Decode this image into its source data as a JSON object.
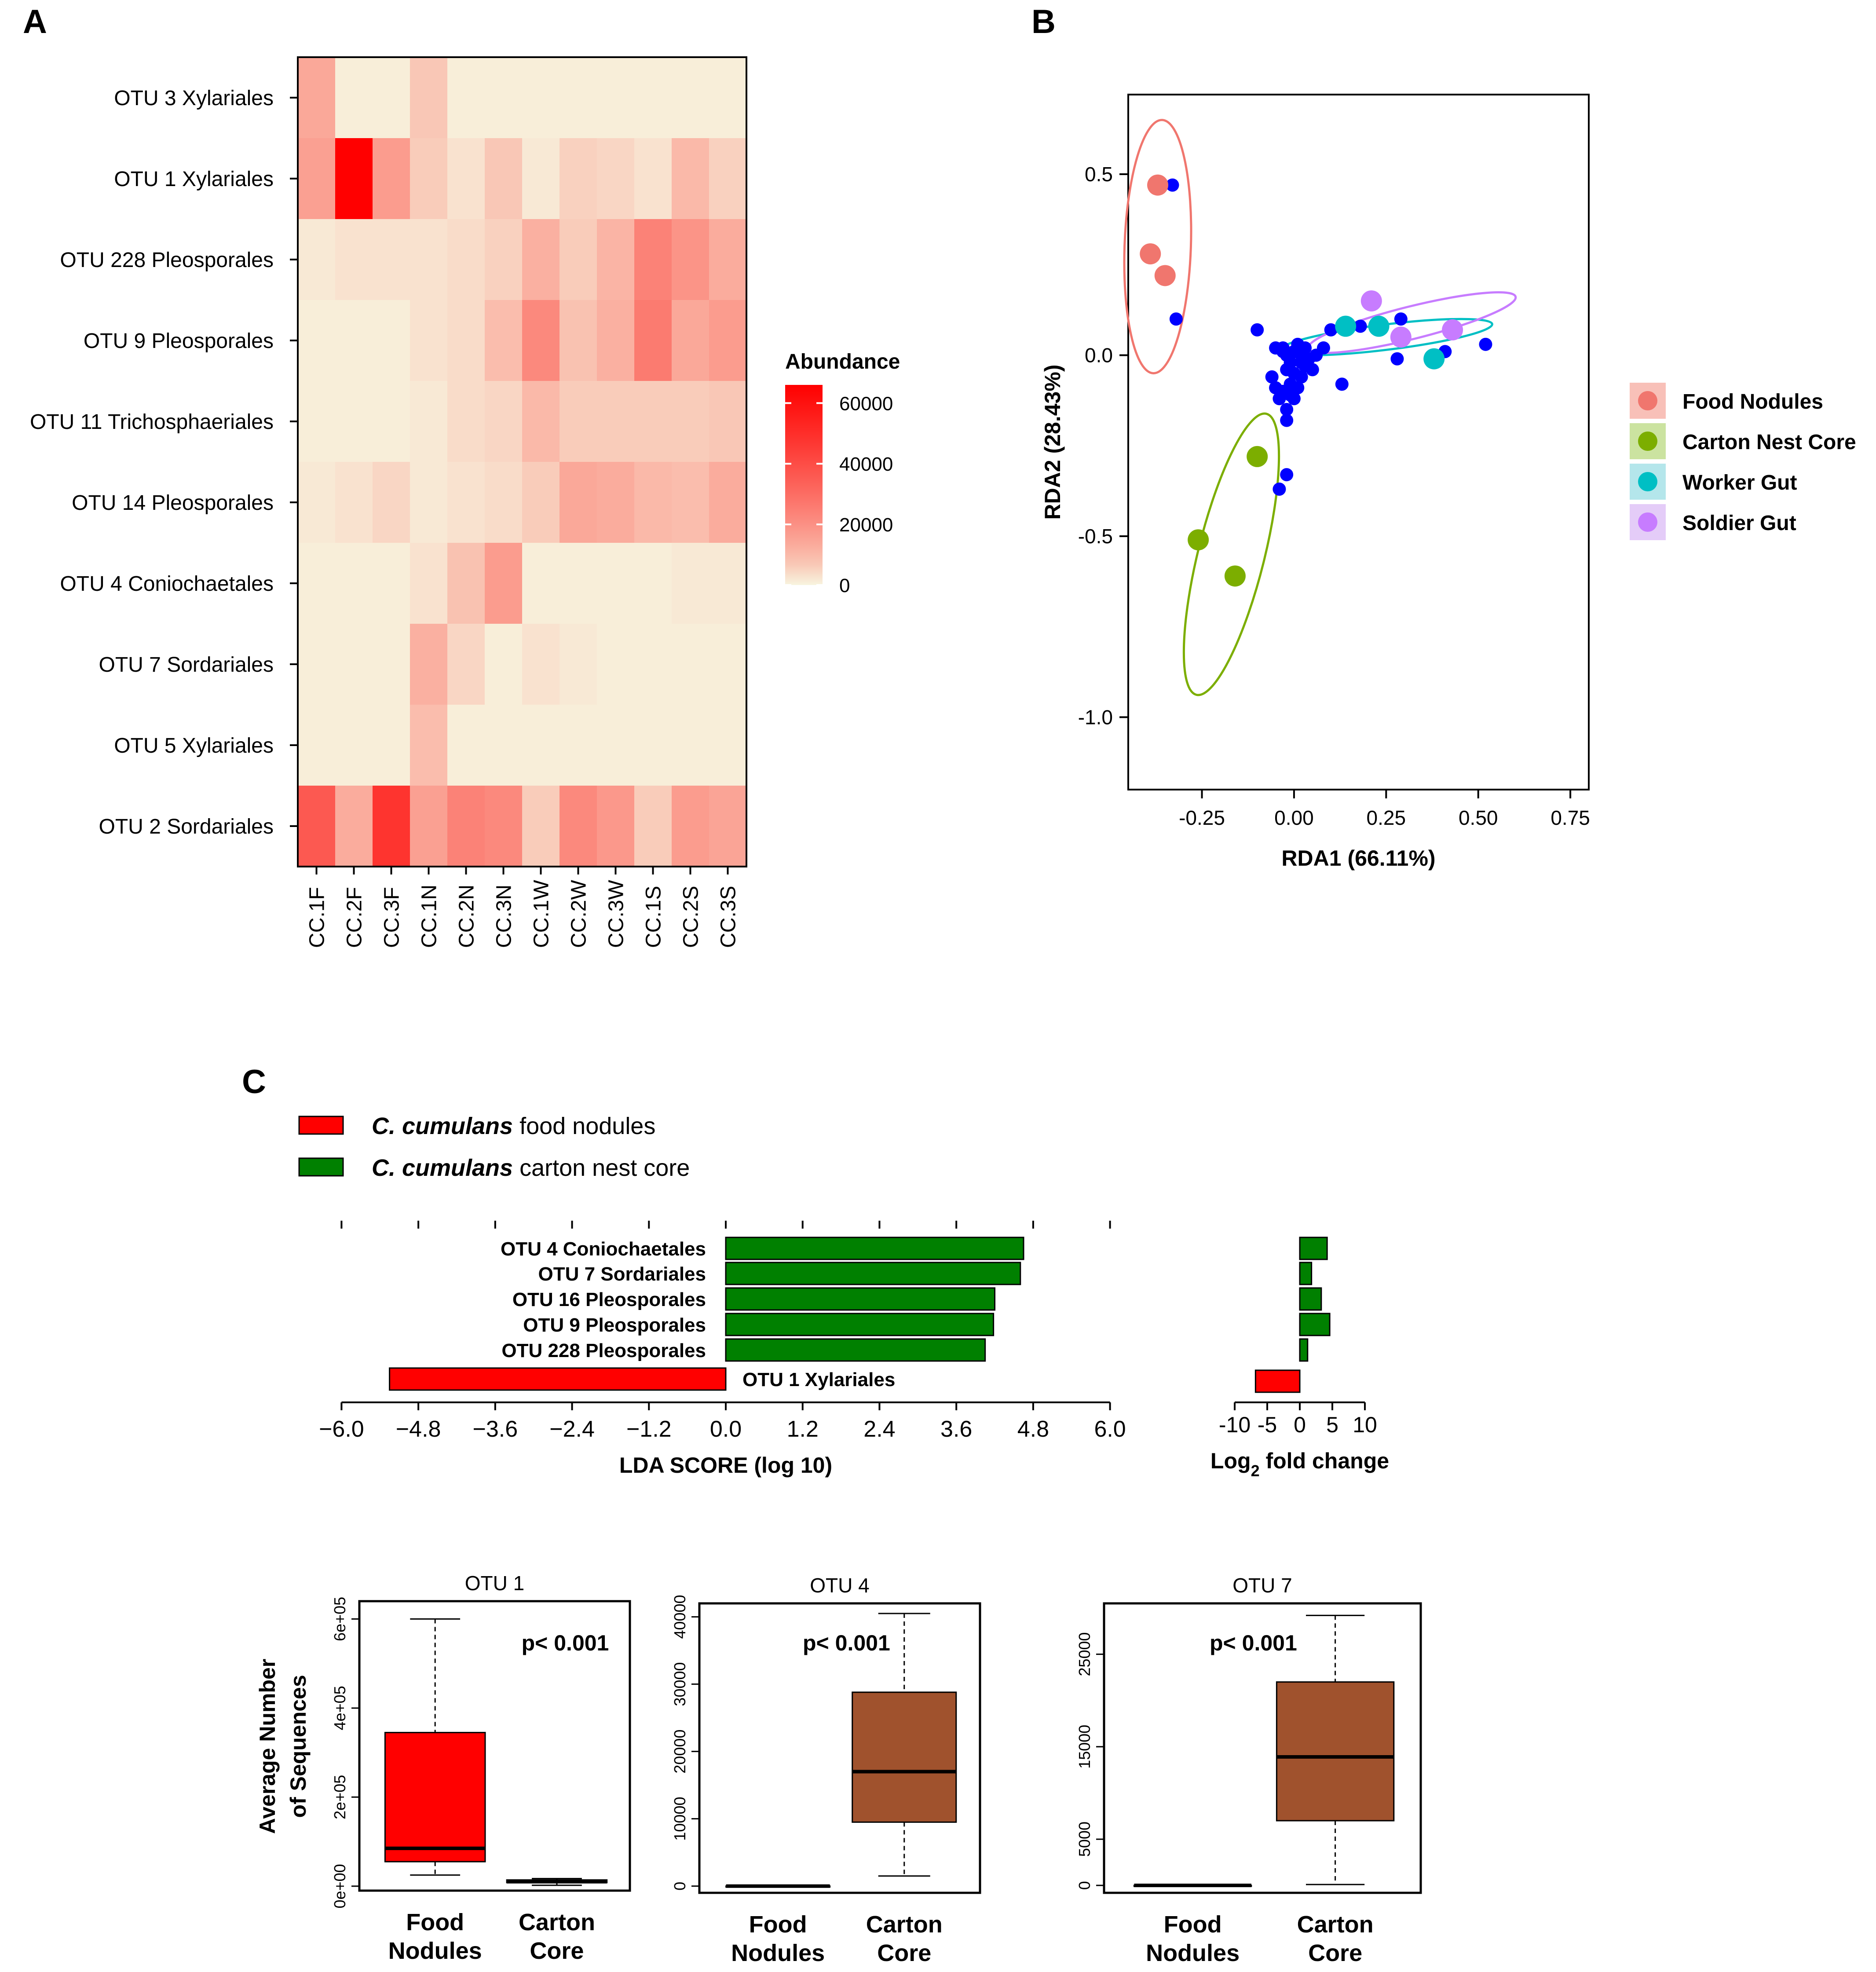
{
  "panels": {
    "a": "A",
    "b": "B",
    "c": "C"
  },
  "chart_data": [
    {
      "id": "heatmap",
      "type": "heatmap",
      "title": "",
      "rows": [
        "OTU 3 Xylariales",
        "OTU 1 Xylariales",
        "OTU 228 Pleosporales",
        "OTU 9 Pleosporales",
        "OTU 11 Trichosphaeriales",
        "OTU 14 Pleosporales",
        "OTU 4 Coniochaetales",
        "OTU 7 Sordariales",
        "OTU 5 Xylariales",
        "OTU 2 Sordariales"
      ],
      "cols": [
        "CC.1F",
        "CC.2F",
        "CC.3F",
        "CC.1N",
        "CC.2N",
        "CC.3N",
        "CC.1W",
        "CC.2W",
        "CC.3W",
        "CC.1S",
        "CC.2S",
        "CC.3S"
      ],
      "values": [
        [
          14000,
          500,
          500,
          7000,
          500,
          500,
          500,
          500,
          500,
          500,
          500,
          500
        ],
        [
          16000,
          66000,
          17000,
          6000,
          2000,
          7000,
          1000,
          5000,
          4000,
          2000,
          10000,
          5000
        ],
        [
          1000,
          2000,
          2000,
          2000,
          3000,
          5000,
          12000,
          6000,
          11000,
          24000,
          19000,
          13000
        ],
        [
          500,
          500,
          500,
          2000,
          3000,
          9000,
          22000,
          8000,
          12000,
          26000,
          14000,
          17000
        ],
        [
          500,
          500,
          500,
          1000,
          3000,
          4000,
          10000,
          6000,
          6000,
          6000,
          6000,
          7000
        ],
        [
          1000,
          2000,
          4000,
          1000,
          2000,
          3000,
          6000,
          14000,
          13000,
          10000,
          9000,
          13000
        ],
        [
          500,
          500,
          500,
          2000,
          8000,
          17000,
          500,
          500,
          500,
          500,
          1000,
          1000
        ],
        [
          500,
          500,
          500,
          12000,
          4000,
          500,
          2000,
          1000,
          500,
          500,
          500,
          500
        ],
        [
          500,
          500,
          500,
          9000,
          500,
          500,
          500,
          500,
          500,
          500,
          500,
          500
        ],
        [
          36000,
          13000,
          48000,
          16000,
          24000,
          22000,
          6000,
          22000,
          18000,
          6000,
          17000,
          15000
        ]
      ],
      "legend": {
        "title": "Abundance",
        "ticks": [
          "60000",
          "40000",
          "20000",
          "0"
        ],
        "tick_values": [
          60000,
          40000,
          20000,
          0
        ],
        "min": 0,
        "max": 66000
      },
      "colors": {
        "low": "#F8F4DF",
        "high": "#FF0000"
      }
    },
    {
      "id": "rda",
      "type": "scatter",
      "xlabel": "RDA1 (66.11%)",
      "ylabel": "RDA2 (28.43%)",
      "xlim": [
        -0.45,
        0.8
      ],
      "ylim": [
        -1.2,
        0.72
      ],
      "xticks": [
        "-0.25",
        "0.00",
        "0.25",
        "0.50",
        "0.75"
      ],
      "xtick_values": [
        -0.25,
        0,
        0.25,
        0.5,
        0.75
      ],
      "yticks": [
        "0.5",
        "0.0",
        "-0.5",
        "-1.0"
      ],
      "ytick_values": [
        0.5,
        0,
        -0.5,
        -1.0
      ],
      "series": [
        {
          "name": "Food Nodules",
          "color": "#F0766E",
          "legend_bg": "#F8C0B8",
          "points": [
            [
              -0.37,
              0.47
            ],
            [
              -0.39,
              0.28
            ],
            [
              -0.35,
              0.22
            ]
          ],
          "ellipse": {
            "cx": -0.37,
            "cy": 0.3,
            "rx": 0.09,
            "ry": 0.35,
            "angle_deg": 2
          }
        },
        {
          "name": "Carton Nest Core",
          "color": "#7CAE00",
          "legend_bg": "#CBE3A0",
          "points": [
            [
              -0.1,
              -0.28
            ],
            [
              -0.26,
              -0.51
            ],
            [
              -0.16,
              -0.61
            ]
          ],
          "ellipse": {
            "cx": -0.17,
            "cy": -0.55,
            "rx": 0.09,
            "ry": 0.4,
            "angle_deg": 14
          }
        },
        {
          "name": "Worker Gut",
          "color": "#00BFC4",
          "legend_bg": "#B4E6EB",
          "points": [
            [
              0.14,
              0.08
            ],
            [
              0.23,
              0.08
            ],
            [
              0.38,
              -0.01
            ]
          ],
          "ellipse": {
            "cx": 0.25,
            "cy": 0.05,
            "rx": 0.29,
            "ry": 0.035,
            "angle_deg": -7
          }
        },
        {
          "name": "Soldier Gut",
          "color": "#C77CFF",
          "legend_bg": "#E4CCF8",
          "points": [
            [
              0.21,
              0.15
            ],
            [
              0.29,
              0.05
            ],
            [
              0.43,
              0.07
            ]
          ],
          "ellipse": {
            "cx": 0.32,
            "cy": 0.09,
            "rx": 0.29,
            "ry": 0.045,
            "angle_deg": -14
          }
        }
      ],
      "species_points": {
        "color": "#0000FF",
        "points": [
          [
            -0.33,
            0.47
          ],
          [
            -0.32,
            0.1
          ],
          [
            -0.1,
            0.07
          ],
          [
            -0.05,
            0.02
          ],
          [
            -0.03,
            0.01
          ],
          [
            -0.02,
            0.0
          ],
          [
            0.0,
            0.01
          ],
          [
            -0.01,
            -0.02
          ],
          [
            0.02,
            0.0
          ],
          [
            0.04,
            -0.01
          ],
          [
            0.03,
            -0.03
          ],
          [
            -0.02,
            -0.04
          ],
          [
            0.0,
            -0.05
          ],
          [
            -0.01,
            -0.08
          ],
          [
            -0.03,
            -0.1
          ],
          [
            -0.05,
            -0.09
          ],
          [
            -0.04,
            -0.12
          ],
          [
            0.0,
            -0.12
          ],
          [
            -0.02,
            -0.15
          ],
          [
            -0.02,
            -0.18
          ],
          [
            0.02,
            -0.06
          ],
          [
            0.05,
            -0.04
          ],
          [
            0.06,
            0.0
          ],
          [
            0.1,
            0.07
          ],
          [
            0.13,
            -0.08
          ],
          [
            0.18,
            0.08
          ],
          [
            0.29,
            0.1
          ],
          [
            0.28,
            -0.01
          ],
          [
            0.41,
            0.01
          ],
          [
            0.52,
            0.03
          ],
          [
            -0.02,
            -0.33
          ],
          [
            -0.04,
            -0.37
          ],
          [
            0.01,
            0.03
          ],
          [
            -0.03,
            0.02
          ],
          [
            0.08,
            0.02
          ],
          [
            -0.06,
            -0.06
          ],
          [
            0.01,
            -0.09
          ],
          [
            -0.01,
            -0.11
          ],
          [
            0.03,
            0.02
          ],
          [
            0.02,
            -0.02
          ]
        ]
      }
    },
    {
      "id": "lda",
      "type": "bar",
      "orientation": "horizontal",
      "legend": [
        {
          "italic": "C. cumulans",
          "text": " food nodules",
          "color": "#FF0000"
        },
        {
          "italic": "C. cumulans",
          "text": " carton nest core",
          "color": "#008000"
        }
      ],
      "categories": [
        "OTU 4 Coniochaetales",
        "OTU 7  Sordariales",
        "OTU 16  Pleosporales",
        "OTU 9  Pleosporales",
        "OTU 228  Pleosporales",
        "OTU 1  Xylariales"
      ],
      "values": [
        4.65,
        4.6,
        4.2,
        4.18,
        4.05,
        -5.25
      ],
      "colors": [
        "#008000",
        "#008000",
        "#008000",
        "#008000",
        "#008000",
        "#FF0000"
      ],
      "xlim": [
        -6.0,
        6.0
      ],
      "xticks": [
        "−6.0",
        "−4.8",
        "−3.6",
        "−2.4",
        "−1.2",
        "0.0",
        "1.2",
        "2.4",
        "3.6",
        "4.8",
        "6.0"
      ],
      "xtick_values": [
        -6.0,
        -4.8,
        -3.6,
        -2.4,
        -1.2,
        0,
        1.2,
        2.4,
        3.6,
        4.8,
        6.0
      ],
      "xlabel": "LDA SCORE (log 10)"
    },
    {
      "id": "fold_change",
      "type": "bar",
      "orientation": "horizontal",
      "values": [
        4.2,
        1.8,
        3.3,
        4.6,
        1.2,
        -6.8
      ],
      "colors": [
        "#008000",
        "#008000",
        "#008000",
        "#008000",
        "#008000",
        "#FF0000"
      ],
      "xlim": [
        -10,
        10
      ],
      "xticks": [
        "-10",
        "-5",
        "0",
        "5",
        "10"
      ],
      "xtick_values": [
        -10,
        -5,
        0,
        5,
        10
      ],
      "xlabel_main": "Log",
      "xlabel_sub": "2",
      "xlabel_rest": " fold change"
    },
    {
      "id": "box_otu1",
      "type": "box",
      "title": "OTU 1",
      "ylabel_line1": "Average Number",
      "ylabel_line2": "of Sequences",
      "annotation": "p< 0.001",
      "ylim": [
        -10000,
        640000
      ],
      "yticks": [
        "0e+00",
        "2e+05",
        "4e+05",
        "6e+05"
      ],
      "ytick_values": [
        0,
        200000,
        400000,
        600000
      ],
      "categories": [
        [
          "Food",
          "Nodules"
        ],
        [
          "Carton",
          "Core"
        ]
      ],
      "boxes": [
        {
          "min": 25000,
          "q1": 55000,
          "median": 85000,
          "q3": 345000,
          "max": 600000,
          "color": "#FF0000"
        },
        {
          "min": 2000,
          "q1": 8000,
          "median": 10000,
          "q3": 14000,
          "max": 17000,
          "color": "#FF0000"
        }
      ]
    },
    {
      "id": "box_otu4",
      "type": "box",
      "title": "OTU 4",
      "annotation": "p< 0.001",
      "ylim": [
        -1000,
        42000
      ],
      "yticks": [
        "0",
        "10000",
        "20000",
        "30000",
        "40000"
      ],
      "ytick_values": [
        0,
        10000,
        20000,
        30000,
        40000
      ],
      "categories": [
        [
          "Food",
          "Nodules"
        ],
        [
          "Carton",
          "Core"
        ]
      ],
      "boxes": [
        {
          "min": 0,
          "q1": 0,
          "median": 0,
          "q3": 0,
          "max": 0,
          "color": "#A0522D"
        },
        {
          "min": 1500,
          "q1": 9500,
          "median": 17000,
          "q3": 28800,
          "max": 40500,
          "color": "#A0522D"
        }
      ]
    },
    {
      "id": "box_otu7",
      "type": "box",
      "title": "OTU 7",
      "annotation": "p< 0.001",
      "ylim": [
        -800,
        30500
      ],
      "yticks": [
        "0",
        "5000",
        "15000",
        "25000"
      ],
      "ytick_values": [
        0,
        5000,
        15000,
        25000
      ],
      "categories": [
        [
          "Food",
          "Nodules"
        ],
        [
          "Carton",
          "Core"
        ]
      ],
      "boxes": [
        {
          "min": 0,
          "q1": 0,
          "median": 0,
          "q3": 0,
          "max": 0,
          "color": "#A0522D"
        },
        {
          "min": 100,
          "q1": 7000,
          "median": 13900,
          "q3": 22000,
          "max": 29200,
          "color": "#A0522D"
        }
      ]
    }
  ]
}
